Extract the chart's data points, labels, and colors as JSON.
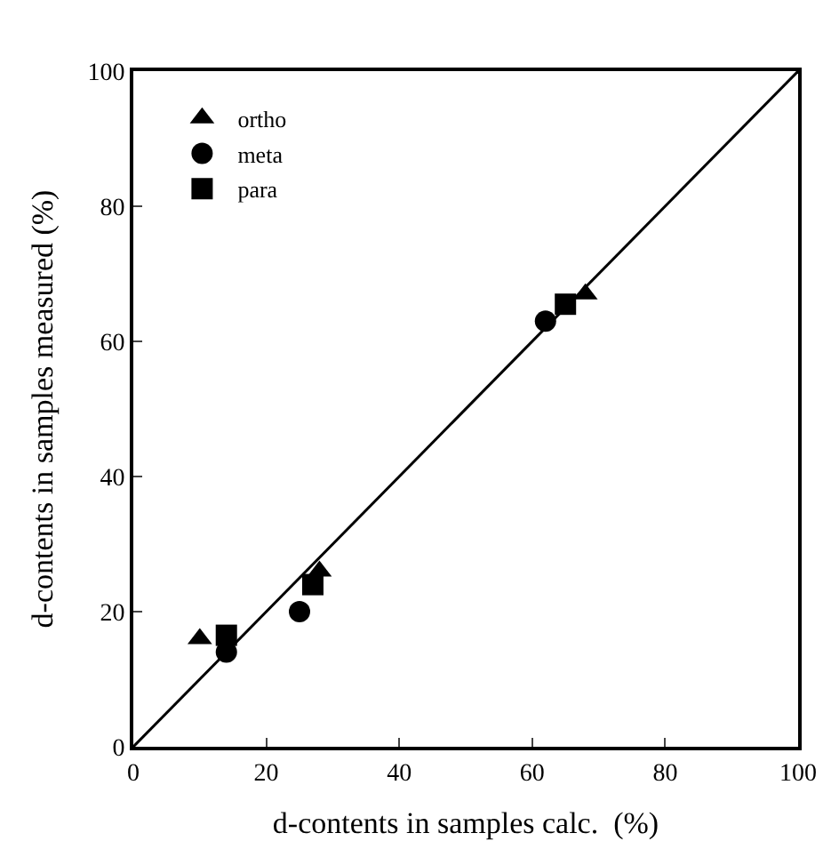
{
  "chart_data": {
    "type": "scatter",
    "xlabel": "d-contents in samples calc.  (%)",
    "ylabel": "d-contents in samples measured (%)",
    "xlim": [
      0,
      100
    ],
    "ylim": [
      0,
      100
    ],
    "xticks": [
      0,
      20,
      40,
      60,
      80,
      100
    ],
    "yticks": [
      0,
      20,
      40,
      60,
      80,
      100
    ],
    "legend": "top left",
    "series": [
      {
        "name": "ortho",
        "color": "#000000",
        "marker": "triangle",
        "x": [
          10,
          28,
          68
        ],
        "values": [
          16,
          26,
          67
        ]
      },
      {
        "name": "meta",
        "color": "#000000",
        "marker": "circle",
        "x": [
          14,
          25,
          62
        ],
        "values": [
          14,
          20,
          63
        ]
      },
      {
        "name": "para",
        "color": "#000000",
        "marker": "square",
        "x": [
          14,
          27,
          65
        ],
        "values": [
          16.5,
          24,
          65.5
        ]
      },
      {
        "type": "line",
        "color": "#000000",
        "marker": "none",
        "x": [
          0,
          100
        ],
        "values": [
          0,
          100
        ]
      }
    ]
  }
}
